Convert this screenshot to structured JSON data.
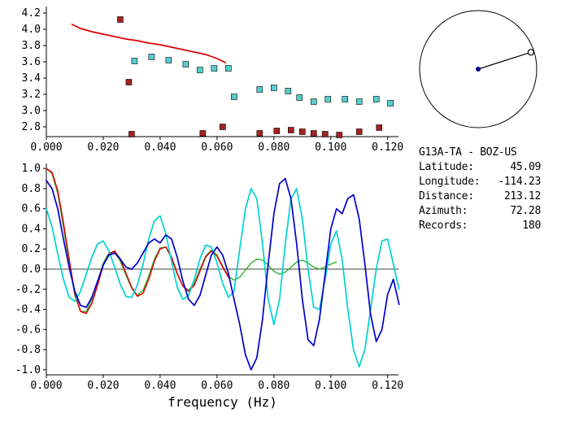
{
  "station_info": {
    "title": "G13A-TA - BOZ-US",
    "rows": [
      {
        "label": "Latitude:",
        "value": "45.09"
      },
      {
        "label": "Longitude:",
        "value": "-114.23"
      },
      {
        "label": "Distance:",
        "value": "213.12"
      },
      {
        "label": "Azimuth:",
        "value": "72.28"
      },
      {
        "label": "Records:",
        "value": "180"
      }
    ]
  },
  "dial": {
    "azimuth_deg": 72.28,
    "ring_color": "#000000",
    "dot_color": "#00008b",
    "marker_color": "#000000"
  },
  "chart_data": [
    {
      "name": "group-velocity-dispersion",
      "type": "scatter",
      "title": "",
      "xlabel": "",
      "ylabel": "",
      "xlim": [
        0,
        0.1238
      ],
      "ylim": [
        2.68,
        4.28
      ],
      "grid": false,
      "x_ticks": [
        {
          "v": 0.0,
          "label": "0.000"
        },
        {
          "v": 0.02,
          "label": "0.020"
        },
        {
          "v": 0.04,
          "label": "0.040"
        },
        {
          "v": 0.06,
          "label": "0.060"
        },
        {
          "v": 0.08,
          "label": "0.080"
        },
        {
          "v": 0.1,
          "label": "0.100"
        },
        {
          "v": 0.12,
          "label": "0.120"
        }
      ],
      "y_ticks": [
        {
          "v": 2.8,
          "label": "2.8"
        },
        {
          "v": 3.0,
          "label": "3.0"
        },
        {
          "v": 3.2,
          "label": "3.2"
        },
        {
          "v": 3.4,
          "label": "3.4"
        },
        {
          "v": 3.6,
          "label": "3.6"
        },
        {
          "v": 3.8,
          "label": "3.8"
        },
        {
          "v": 4.0,
          "label": "4.0"
        },
        {
          "v": 4.2,
          "label": "4.2"
        }
      ],
      "series": [
        {
          "name": "reference-dispersion-curve",
          "kind": "line",
          "color": "#dd0000",
          "width": 1.7,
          "points": [
            [
              0.009,
              4.06
            ],
            [
              0.012,
              4.01
            ],
            [
              0.016,
              3.97
            ],
            [
              0.02,
              3.94
            ],
            [
              0.024,
              3.91
            ],
            [
              0.028,
              3.88
            ],
            [
              0.032,
              3.86
            ],
            [
              0.036,
              3.83
            ],
            [
              0.04,
              3.81
            ],
            [
              0.044,
              3.78
            ],
            [
              0.048,
              3.75
            ],
            [
              0.052,
              3.72
            ],
            [
              0.056,
              3.69
            ],
            [
              0.06,
              3.64
            ],
            [
              0.063,
              3.59
            ]
          ]
        },
        {
          "name": "rejected-measurements",
          "kind": "square",
          "color": "#a52222",
          "points": [
            [
              0.026,
              4.12
            ],
            [
              0.029,
              3.35
            ],
            [
              0.03,
              2.71
            ],
            [
              0.055,
              2.72
            ],
            [
              0.062,
              2.8
            ],
            [
              0.075,
              2.72
            ],
            [
              0.081,
              2.75
            ],
            [
              0.086,
              2.76
            ],
            [
              0.09,
              2.74
            ],
            [
              0.094,
              2.72
            ],
            [
              0.098,
              2.71
            ],
            [
              0.103,
              2.7
            ],
            [
              0.11,
              2.74
            ],
            [
              0.117,
              2.79
            ]
          ]
        },
        {
          "name": "accepted-measurements",
          "kind": "square",
          "color": "#57cccc",
          "points": [
            [
              0.031,
              3.61
            ],
            [
              0.037,
              3.66
            ],
            [
              0.043,
              3.62
            ],
            [
              0.049,
              3.57
            ],
            [
              0.054,
              3.5
            ],
            [
              0.059,
              3.52
            ],
            [
              0.064,
              3.52
            ],
            [
              0.066,
              3.17
            ],
            [
              0.075,
              3.26
            ],
            [
              0.08,
              3.28
            ],
            [
              0.085,
              3.24
            ],
            [
              0.089,
              3.16
            ],
            [
              0.094,
              3.11
            ],
            [
              0.099,
              3.14
            ],
            [
              0.105,
              3.14
            ],
            [
              0.11,
              3.11
            ],
            [
              0.116,
              3.14
            ],
            [
              0.121,
              3.09
            ]
          ]
        }
      ]
    },
    {
      "name": "filtered-waveforms",
      "type": "line",
      "title": "",
      "xlabel": "frequency (Hz)",
      "ylabel": "",
      "xlim": [
        0,
        0.1238
      ],
      "ylim": [
        -1.05,
        1.05
      ],
      "zero_line": true,
      "grid": false,
      "x_ticks": [
        {
          "v": 0.0,
          "label": "0.000"
        },
        {
          "v": 0.02,
          "label": "0.020"
        },
        {
          "v": 0.04,
          "label": "0.040"
        },
        {
          "v": 0.06,
          "label": "0.060"
        },
        {
          "v": 0.08,
          "label": "0.080"
        },
        {
          "v": 0.1,
          "label": "0.100"
        },
        {
          "v": 0.12,
          "label": "0.120"
        }
      ],
      "y_ticks": [
        {
          "v": 1.0,
          "label": "1.0"
        },
        {
          "v": 0.8,
          "label": "0.8"
        },
        {
          "v": 0.6,
          "label": "0.6"
        },
        {
          "v": 0.4,
          "label": "0.4"
        },
        {
          "v": 0.2,
          "label": "0.2"
        },
        {
          "v": 0.0,
          "label": "0.0"
        },
        {
          "v": -0.2,
          "label": "-0.2"
        },
        {
          "v": -0.4,
          "label": "-0.4"
        },
        {
          "v": -0.6,
          "label": "-0.6"
        },
        {
          "v": -0.8,
          "label": "-0.8"
        },
        {
          "v": -1.0,
          "label": "-1.0"
        }
      ],
      "series": [
        {
          "name": "waveform-green",
          "kind": "line",
          "color": "#2db82d",
          "width": 1.4,
          "x0": 0,
          "dx": 0.002,
          "y": [
            1.0,
            0.95,
            0.75,
            0.42,
            0.06,
            -0.26,
            -0.42,
            -0.42,
            -0.3,
            -0.12,
            0.06,
            0.16,
            0.17,
            0.08,
            -0.06,
            -0.19,
            -0.26,
            -0.21,
            -0.07,
            0.1,
            0.21,
            0.22,
            0.11,
            -0.05,
            -0.17,
            -0.21,
            -0.14,
            0.0,
            0.13,
            0.19,
            0.14,
            0.03,
            -0.07,
            -0.11,
            -0.08,
            -0.01,
            0.06,
            0.1,
            0.09,
            0.04,
            -0.02,
            -0.05,
            -0.03,
            0.02,
            0.07,
            0.09,
            0.06,
            0.02,
            0.0,
            0.02,
            0.05,
            0.07
          ]
        },
        {
          "name": "waveform-red",
          "kind": "line",
          "color": "#dd0000",
          "width": 1.5,
          "x0": 0,
          "dx": 0.002,
          "y": [
            1.0,
            0.96,
            0.78,
            0.46,
            0.1,
            -0.24,
            -0.42,
            -0.44,
            -0.34,
            -0.16,
            0.04,
            0.15,
            0.18,
            0.1,
            -0.04,
            -0.18,
            -0.27,
            -0.24,
            -0.1,
            0.08,
            0.2,
            0.22,
            0.12,
            -0.04,
            -0.17,
            -0.22,
            -0.16,
            -0.02,
            0.12,
            0.18,
            0.13,
            0.02,
            -0.08
          ]
        },
        {
          "name": "waveform-cyan",
          "kind": "line",
          "color": "#00d2d2",
          "width": 1.7,
          "x0": 0,
          "dx": 0.002,
          "y": [
            0.6,
            0.42,
            0.15,
            -0.1,
            -0.28,
            -0.32,
            -0.22,
            -0.05,
            0.12,
            0.25,
            0.28,
            0.18,
            0.02,
            -0.15,
            -0.27,
            -0.28,
            -0.16,
            0.05,
            0.3,
            0.48,
            0.53,
            0.35,
            0.08,
            -0.18,
            -0.3,
            -0.26,
            -0.1,
            0.1,
            0.24,
            0.22,
            0.06,
            -0.14,
            -0.28,
            -0.22,
            0.2,
            0.6,
            0.8,
            0.7,
            0.25,
            -0.3,
            -0.55,
            -0.3,
            0.25,
            0.7,
            0.8,
            0.5,
            0.0,
            -0.38,
            -0.4,
            -0.1,
            0.25,
            0.38,
            0.1,
            -0.4,
            -0.8,
            -0.97,
            -0.8,
            -0.4,
            0.0,
            0.28,
            0.3,
            0.05,
            -0.2
          ]
        },
        {
          "name": "waveform-blue",
          "kind": "line",
          "color": "#0000cc",
          "width": 1.7,
          "x0": 0,
          "dx": 0.002,
          "y": [
            0.88,
            0.8,
            0.6,
            0.3,
            0.02,
            -0.22,
            -0.36,
            -0.38,
            -0.28,
            -0.12,
            0.04,
            0.14,
            0.16,
            0.1,
            0.02,
            0.0,
            0.06,
            0.16,
            0.26,
            0.3,
            0.26,
            0.34,
            0.3,
            0.12,
            -0.12,
            -0.3,
            -0.36,
            -0.26,
            -0.06,
            0.14,
            0.22,
            0.14,
            -0.04,
            -0.3,
            -0.55,
            -0.85,
            -1.0,
            -0.88,
            -0.5,
            0.05,
            0.55,
            0.85,
            0.9,
            0.7,
            0.25,
            -0.3,
            -0.7,
            -0.76,
            -0.5,
            -0.05,
            0.4,
            0.6,
            0.55,
            0.7,
            0.74,
            0.5,
            0.05,
            -0.45,
            -0.72,
            -0.6,
            -0.25,
            -0.1,
            -0.35
          ]
        }
      ]
    }
  ]
}
